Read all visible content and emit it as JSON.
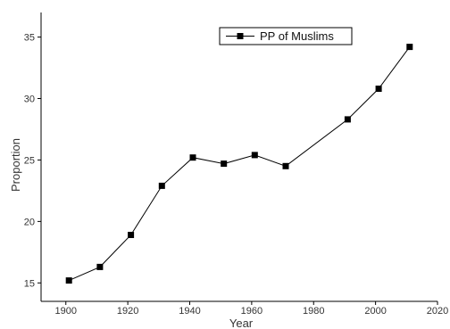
{
  "chart_data": {
    "type": "line",
    "xlabel": "Year",
    "ylabel": "Proportion",
    "xlim": [
      1892,
      2020
    ],
    "ylim": [
      13.5,
      37
    ],
    "x_ticks": [
      1900,
      1920,
      1940,
      1960,
      1980,
      2000,
      2020
    ],
    "y_ticks": [
      15,
      20,
      25,
      30,
      35
    ],
    "grid": false,
    "legend": "top-right",
    "series": [
      {
        "name": "PP of Muslims",
        "color": "#000000",
        "marker": "square",
        "x": [
          1901,
          1911,
          1921,
          1931,
          1941,
          1951,
          1961,
          1971,
          1991,
          2001,
          2011
        ],
        "y": [
          15.2,
          16.3,
          18.9,
          22.9,
          25.2,
          24.7,
          25.4,
          24.5,
          28.3,
          30.8,
          34.2
        ]
      }
    ]
  }
}
